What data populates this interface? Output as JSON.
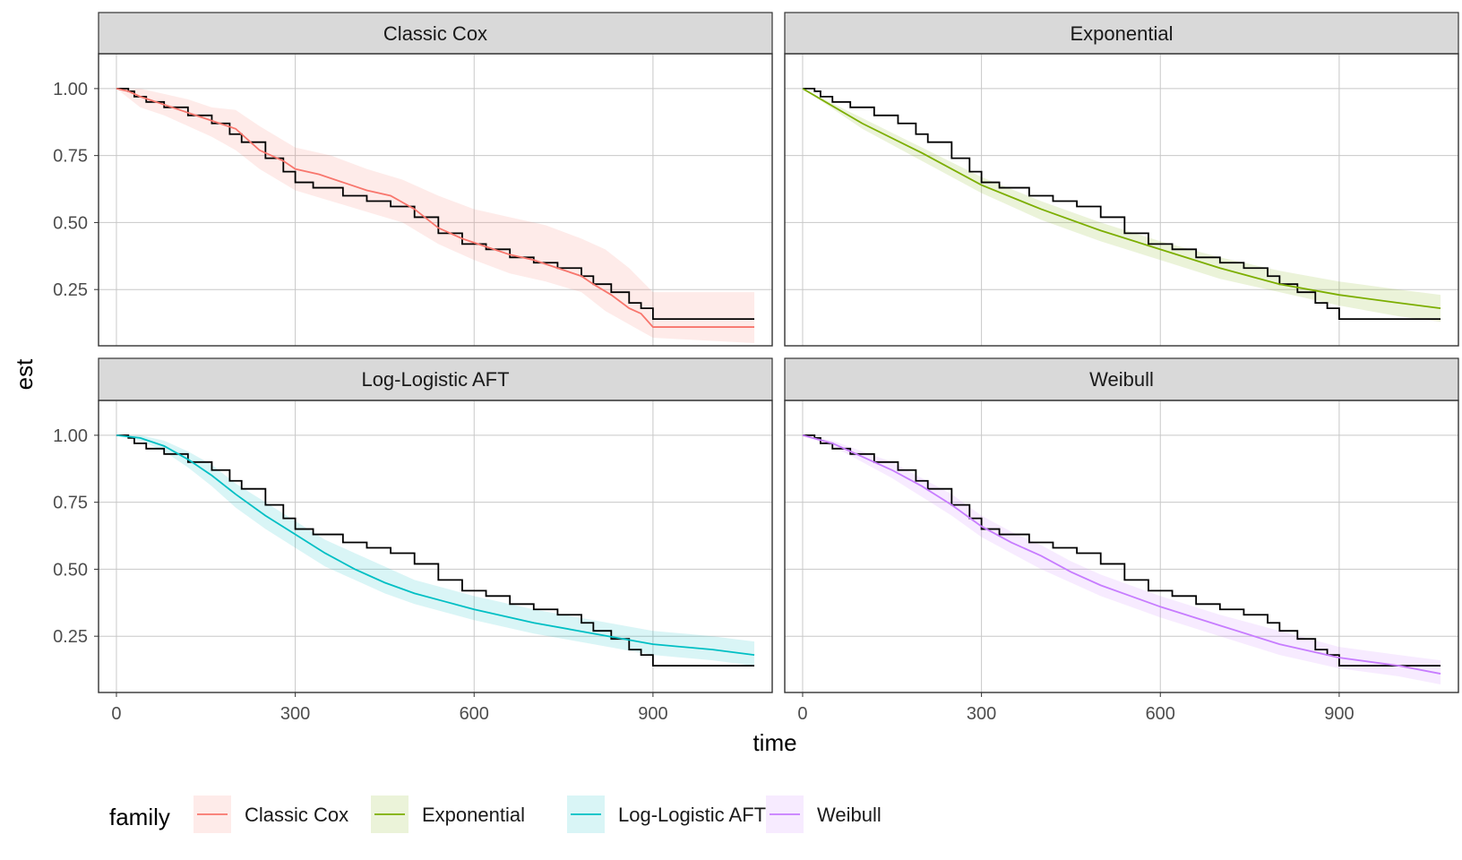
{
  "chart_data": {
    "type": "line",
    "xlabel": "time",
    "ylabel": "est",
    "xlim": [
      -30,
      1100
    ],
    "ylim": [
      0.04,
      1.13
    ],
    "x_ticks": [
      0,
      300,
      600,
      900
    ],
    "x_tick_labels": [
      "0",
      "300",
      "600",
      "900"
    ],
    "y_ticks": [
      0.25,
      0.5,
      0.75,
      1.0
    ],
    "y_tick_labels": [
      "0.25",
      "0.50",
      "0.75",
      "1.00"
    ],
    "grid": true,
    "legend_title": "family",
    "legend_position": "bottom-left",
    "observed_series": {
      "color": "#000000",
      "points": [
        [
          0,
          1.0
        ],
        [
          20,
          0.99
        ],
        [
          30,
          0.97
        ],
        [
          50,
          0.95
        ],
        [
          80,
          0.93
        ],
        [
          120,
          0.9
        ],
        [
          160,
          0.87
        ],
        [
          190,
          0.83
        ],
        [
          210,
          0.8
        ],
        [
          250,
          0.74
        ],
        [
          280,
          0.69
        ],
        [
          300,
          0.65
        ],
        [
          330,
          0.63
        ],
        [
          380,
          0.6
        ],
        [
          420,
          0.58
        ],
        [
          460,
          0.56
        ],
        [
          500,
          0.52
        ],
        [
          540,
          0.46
        ],
        [
          580,
          0.42
        ],
        [
          620,
          0.4
        ],
        [
          660,
          0.37
        ],
        [
          700,
          0.35
        ],
        [
          740,
          0.33
        ],
        [
          780,
          0.3
        ],
        [
          800,
          0.27
        ],
        [
          830,
          0.24
        ],
        [
          860,
          0.2
        ],
        [
          880,
          0.18
        ],
        [
          900,
          0.14
        ],
        [
          1070,
          0.14
        ]
      ]
    },
    "panels": [
      {
        "title": "Classic Cox",
        "color": "#F8766D",
        "points": [
          [
            0,
            1.0
          ],
          [
            20,
            0.99
          ],
          [
            40,
            0.97
          ],
          [
            80,
            0.94
          ],
          [
            120,
            0.91
          ],
          [
            160,
            0.88
          ],
          [
            200,
            0.85
          ],
          [
            240,
            0.77
          ],
          [
            280,
            0.73
          ],
          [
            300,
            0.7
          ],
          [
            340,
            0.68
          ],
          [
            380,
            0.65
          ],
          [
            420,
            0.62
          ],
          [
            460,
            0.6
          ],
          [
            500,
            0.55
          ],
          [
            540,
            0.48
          ],
          [
            580,
            0.44
          ],
          [
            620,
            0.41
          ],
          [
            660,
            0.38
          ],
          [
            700,
            0.36
          ],
          [
            740,
            0.33
          ],
          [
            780,
            0.3
          ],
          [
            800,
            0.27
          ],
          [
            830,
            0.23
          ],
          [
            860,
            0.18
          ],
          [
            880,
            0.16
          ],
          [
            900,
            0.11
          ],
          [
            1070,
            0.11
          ]
        ],
        "band": [
          [
            0,
            1.0,
            1.0
          ],
          [
            40,
            0.93,
            1.0
          ],
          [
            80,
            0.9,
            0.98
          ],
          [
            120,
            0.86,
            0.96
          ],
          [
            160,
            0.82,
            0.93
          ],
          [
            200,
            0.77,
            0.92
          ],
          [
            240,
            0.7,
            0.86
          ],
          [
            300,
            0.62,
            0.78
          ],
          [
            360,
            0.58,
            0.75
          ],
          [
            420,
            0.54,
            0.7
          ],
          [
            480,
            0.5,
            0.66
          ],
          [
            540,
            0.42,
            0.6
          ],
          [
            600,
            0.36,
            0.55
          ],
          [
            660,
            0.31,
            0.52
          ],
          [
            720,
            0.28,
            0.49
          ],
          [
            780,
            0.24,
            0.44
          ],
          [
            820,
            0.17,
            0.4
          ],
          [
            860,
            0.12,
            0.33
          ],
          [
            900,
            0.07,
            0.24
          ],
          [
            1070,
            0.05,
            0.24
          ]
        ]
      },
      {
        "title": "Exponential",
        "color": "#7CAE00",
        "points": [
          [
            0,
            1.0
          ],
          [
            100,
            0.87
          ],
          [
            200,
            0.76
          ],
          [
            300,
            0.64
          ],
          [
            400,
            0.55
          ],
          [
            500,
            0.47
          ],
          [
            600,
            0.4
          ],
          [
            700,
            0.33
          ],
          [
            800,
            0.27
          ],
          [
            900,
            0.23
          ],
          [
            1000,
            0.2
          ],
          [
            1070,
            0.18
          ]
        ],
        "band": [
          [
            0,
            1.0,
            1.0
          ],
          [
            100,
            0.85,
            0.89
          ],
          [
            200,
            0.73,
            0.78
          ],
          [
            300,
            0.61,
            0.67
          ],
          [
            400,
            0.51,
            0.58
          ],
          [
            500,
            0.43,
            0.5
          ],
          [
            600,
            0.36,
            0.43
          ],
          [
            700,
            0.29,
            0.37
          ],
          [
            800,
            0.24,
            0.32
          ],
          [
            900,
            0.19,
            0.28
          ],
          [
            1000,
            0.15,
            0.25
          ],
          [
            1070,
            0.13,
            0.23
          ]
        ]
      },
      {
        "title": "Log-Logistic AFT",
        "color": "#00BFC4",
        "points": [
          [
            0,
            1.0
          ],
          [
            40,
            0.99
          ],
          [
            80,
            0.96
          ],
          [
            120,
            0.91
          ],
          [
            160,
            0.85
          ],
          [
            200,
            0.78
          ],
          [
            250,
            0.7
          ],
          [
            300,
            0.63
          ],
          [
            350,
            0.56
          ],
          [
            400,
            0.5
          ],
          [
            450,
            0.45
          ],
          [
            500,
            0.41
          ],
          [
            550,
            0.38
          ],
          [
            600,
            0.35
          ],
          [
            700,
            0.3
          ],
          [
            800,
            0.26
          ],
          [
            900,
            0.22
          ],
          [
            1000,
            0.2
          ],
          [
            1070,
            0.18
          ]
        ],
        "band": [
          [
            0,
            1.0,
            1.0
          ],
          [
            40,
            0.98,
            1.0
          ],
          [
            80,
            0.94,
            0.98
          ],
          [
            120,
            0.88,
            0.94
          ],
          [
            160,
            0.81,
            0.89
          ],
          [
            200,
            0.73,
            0.82
          ],
          [
            250,
            0.65,
            0.75
          ],
          [
            300,
            0.58,
            0.68
          ],
          [
            350,
            0.51,
            0.61
          ],
          [
            400,
            0.46,
            0.56
          ],
          [
            450,
            0.41,
            0.51
          ],
          [
            500,
            0.37,
            0.46
          ],
          [
            550,
            0.34,
            0.43
          ],
          [
            600,
            0.31,
            0.4
          ],
          [
            700,
            0.26,
            0.35
          ],
          [
            800,
            0.22,
            0.31
          ],
          [
            900,
            0.18,
            0.27
          ],
          [
            1000,
            0.16,
            0.25
          ],
          [
            1070,
            0.14,
            0.23
          ]
        ]
      },
      {
        "title": "Weibull",
        "color": "#C77CFF",
        "points": [
          [
            0,
            1.0
          ],
          [
            50,
            0.97
          ],
          [
            100,
            0.92
          ],
          [
            150,
            0.87
          ],
          [
            200,
            0.81
          ],
          [
            250,
            0.74
          ],
          [
            300,
            0.66
          ],
          [
            350,
            0.6
          ],
          [
            400,
            0.55
          ],
          [
            450,
            0.49
          ],
          [
            500,
            0.44
          ],
          [
            550,
            0.4
          ],
          [
            600,
            0.36
          ],
          [
            700,
            0.29
          ],
          [
            800,
            0.22
          ],
          [
            900,
            0.17
          ],
          [
            1000,
            0.14
          ],
          [
            1070,
            0.11
          ]
        ],
        "band": [
          [
            0,
            1.0,
            1.0
          ],
          [
            50,
            0.96,
            0.98
          ],
          [
            100,
            0.9,
            0.94
          ],
          [
            150,
            0.84,
            0.9
          ],
          [
            200,
            0.77,
            0.84
          ],
          [
            250,
            0.7,
            0.78
          ],
          [
            300,
            0.62,
            0.7
          ],
          [
            350,
            0.56,
            0.64
          ],
          [
            400,
            0.5,
            0.59
          ],
          [
            450,
            0.45,
            0.53
          ],
          [
            500,
            0.4,
            0.48
          ],
          [
            550,
            0.36,
            0.44
          ],
          [
            600,
            0.32,
            0.4
          ],
          [
            700,
            0.25,
            0.33
          ],
          [
            800,
            0.18,
            0.27
          ],
          [
            900,
            0.13,
            0.21
          ],
          [
            1000,
            0.1,
            0.18
          ],
          [
            1070,
            0.07,
            0.16
          ]
        ]
      }
    ]
  }
}
